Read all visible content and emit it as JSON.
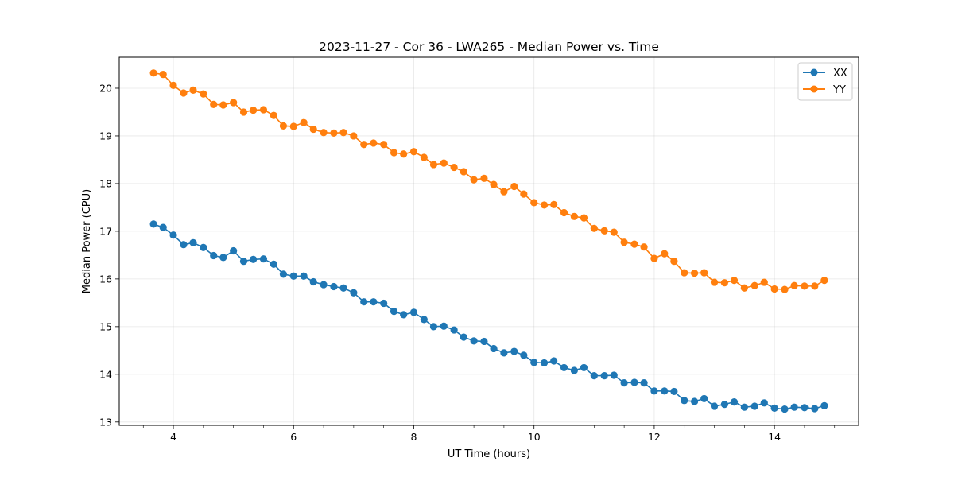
{
  "chart_data": {
    "type": "line",
    "title": "2023-11-27 - Cor 36 - LWA265 - Median Power vs. Time",
    "xlabel": "UT Time (hours)",
    "ylabel": "Median Power (CPU)",
    "xlim": [
      3.1,
      15.4
    ],
    "ylim": [
      12.93,
      20.65
    ],
    "xticks": [
      4,
      6,
      8,
      10,
      12,
      14
    ],
    "xtick_labels": [
      "4",
      "6",
      "8",
      "10",
      "12",
      "14"
    ],
    "yticks": [
      13,
      14,
      15,
      16,
      17,
      18,
      19,
      20
    ],
    "ytick_labels": [
      "13",
      "14",
      "15",
      "16",
      "17",
      "18",
      "19",
      "20"
    ],
    "grid": true,
    "legend_position": "upper-right",
    "x": [
      3.67,
      3.83,
      4.0,
      4.17,
      4.33,
      4.5,
      4.67,
      4.83,
      5.0,
      5.17,
      5.33,
      5.5,
      5.67,
      5.83,
      6.0,
      6.17,
      6.33,
      6.5,
      6.67,
      6.83,
      7.0,
      7.17,
      7.33,
      7.5,
      7.67,
      7.83,
      8.0,
      8.17,
      8.33,
      8.5,
      8.67,
      8.83,
      9.0,
      9.17,
      9.33,
      9.5,
      9.67,
      9.83,
      10.0,
      10.17,
      10.33,
      10.5,
      10.67,
      10.83,
      11.0,
      11.17,
      11.33,
      11.5,
      11.67,
      11.83,
      12.0,
      12.17,
      12.33,
      12.5,
      12.67,
      12.83,
      13.0,
      13.17,
      13.33,
      13.5,
      13.67,
      13.83,
      14.0,
      14.17,
      14.33,
      14.5,
      14.67,
      14.83
    ],
    "series": [
      {
        "name": "XX",
        "color": "#1f77b4",
        "values": [
          17.15,
          17.08,
          16.92,
          16.72,
          16.76,
          16.66,
          16.49,
          16.45,
          16.59,
          16.37,
          16.41,
          16.42,
          16.31,
          16.1,
          16.06,
          16.06,
          15.94,
          15.88,
          15.84,
          15.81,
          15.71,
          15.52,
          15.52,
          15.49,
          15.32,
          15.25,
          15.3,
          15.15,
          15.0,
          15.01,
          14.93,
          14.78,
          14.7,
          14.69,
          14.54,
          14.45,
          14.48,
          14.4,
          14.25,
          14.24,
          14.28,
          14.14,
          14.08,
          14.14,
          13.97,
          13.97,
          13.98,
          13.82,
          13.83,
          13.82,
          13.65,
          13.65,
          13.64,
          13.45,
          13.43,
          13.49,
          13.33,
          13.37,
          13.42,
          13.31,
          13.33,
          13.4,
          13.29,
          13.27,
          13.31,
          13.3,
          13.28,
          13.34
        ]
      },
      {
        "name": "YY",
        "color": "#ff7f0e",
        "values": [
          20.32,
          20.29,
          20.06,
          19.9,
          19.96,
          19.88,
          19.66,
          19.65,
          19.7,
          19.5,
          19.54,
          19.55,
          19.43,
          19.21,
          19.2,
          19.28,
          19.14,
          19.07,
          19.06,
          19.07,
          19.0,
          18.82,
          18.85,
          18.82,
          18.65,
          18.62,
          18.67,
          18.55,
          18.4,
          18.43,
          18.34,
          18.25,
          18.08,
          18.11,
          17.98,
          17.83,
          17.94,
          17.78,
          17.6,
          17.55,
          17.56,
          17.39,
          17.31,
          17.28,
          17.06,
          17.01,
          16.98,
          16.77,
          16.73,
          16.67,
          16.43,
          16.53,
          16.37,
          16.13,
          16.12,
          16.13,
          15.93,
          15.92,
          15.97,
          15.81,
          15.86,
          15.93,
          15.79,
          15.78,
          15.86,
          15.85,
          15.85,
          15.97
        ]
      }
    ]
  }
}
